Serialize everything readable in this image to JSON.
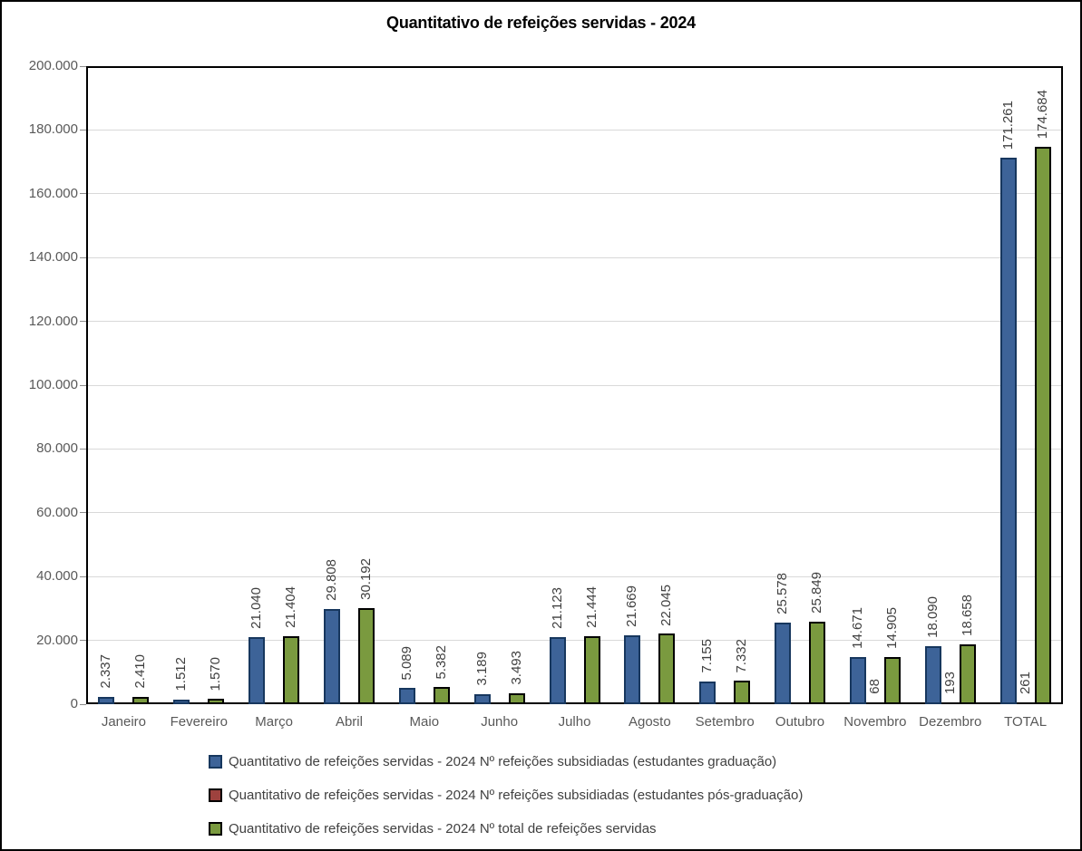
{
  "chart_data": {
    "type": "bar",
    "title": "Quantitativo de refeições servidas - 2024",
    "categories": [
      "Janeiro",
      "Fevereiro",
      "Março",
      "Abril",
      "Maio",
      "Junho",
      "Julho",
      "Agosto",
      "Setembro",
      "Outubro",
      "Novembro",
      "Dezembro",
      "TOTAL"
    ],
    "series": [
      {
        "name": "Quantitativo de refeições servidas - 2024 Nº refeições subsidiadas (estudantes graduação)",
        "color": "#3D6398",
        "border": "#17375E",
        "values": [
          2337,
          1512,
          21040,
          29808,
          5089,
          3189,
          21123,
          21669,
          7155,
          25578,
          14671,
          18090,
          171261
        ],
        "labels": [
          "2.337",
          "1.512",
          "21.040",
          "29.808",
          "5.089",
          "3.189",
          "21.123",
          "21.669",
          "7.155",
          "25.578",
          "14.671",
          "18.090",
          "171.261"
        ]
      },
      {
        "name": "Quantitativo de refeições servidas - 2024 Nº refeições subsidiadas (estudantes pós-graduação)",
        "color": "#9E423E",
        "border": "#000000",
        "values": [
          0,
          0,
          0,
          0,
          0,
          0,
          0,
          0,
          0,
          0,
          68,
          193,
          261
        ],
        "labels": [
          "",
          "",
          "",
          "",
          "",
          "",
          "",
          "",
          "",
          "",
          "68",
          "193",
          "261"
        ]
      },
      {
        "name": "Quantitativo de refeições servidas - 2024 Nº total de refeições servidas",
        "color": "#7A9A3F",
        "border": "#000000",
        "values": [
          2410,
          1570,
          21404,
          30192,
          5382,
          3493,
          21444,
          22045,
          7332,
          25849,
          14905,
          18658,
          174684
        ],
        "labels": [
          "2.410",
          "1.570",
          "21.404",
          "30.192",
          "5.382",
          "3.493",
          "21.444",
          "22.045",
          "7.332",
          "25.849",
          "14.905",
          "18.658",
          "174.684"
        ]
      }
    ],
    "xlabel": "",
    "ylabel": "",
    "ylim": [
      0,
      200000
    ],
    "ytick_step": 20000,
    "ytick_labels": [
      "0",
      "20.000",
      "40.000",
      "60.000",
      "80.000",
      "100.000",
      "120.000",
      "140.000",
      "160.000",
      "180.000",
      "200.000"
    ],
    "grid": true,
    "legend_position": "bottom-left",
    "colors": {
      "gridline": "#d9d9d9",
      "axis_text": "#595959",
      "data_label": "#404040",
      "plot_border": "#000000"
    }
  }
}
